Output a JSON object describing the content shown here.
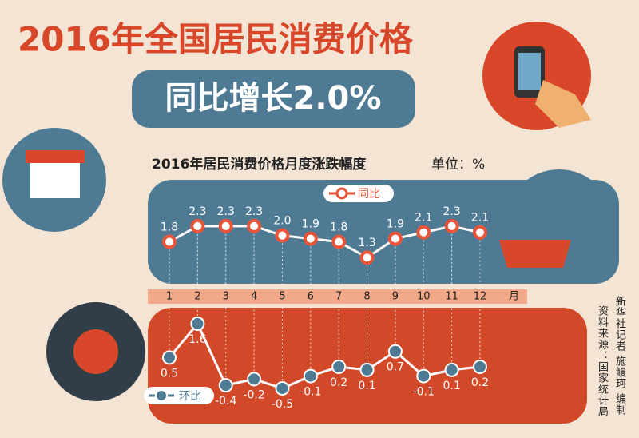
{
  "title": "2016年全国居民消费价格",
  "subtitle": "同比增长2.0%",
  "chart_data": [
    {
      "type": "line",
      "title": "2016年居民消费价格月度涨跌幅度",
      "unit": "单位：%",
      "categories": [
        "1",
        "2",
        "3",
        "4",
        "5",
        "6",
        "7",
        "8",
        "9",
        "10",
        "11",
        "12"
      ],
      "x_unit": "月",
      "ylim": [
        1,
        2.5
      ],
      "series": [
        {
          "name": "同比",
          "color": "#e8553a",
          "values": [
            1.8,
            2.3,
            2.3,
            2.3,
            2.0,
            1.9,
            1.8,
            1.3,
            1.9,
            2.1,
            2.3,
            2.1
          ],
          "value_labels": [
            "1.8",
            "2.3",
            "2.3",
            "2.3",
            "2.0",
            "1.9",
            "1.8",
            "1.3",
            "1.9",
            "2.1",
            "2.3",
            "2.1"
          ]
        }
      ]
    },
    {
      "type": "line",
      "ylim": [
        -0.5,
        1.6
      ],
      "series": [
        {
          "name": "环比",
          "color": "#4f7a94",
          "values": [
            0.5,
            1.6,
            -0.4,
            -0.2,
            -0.5,
            -0.1,
            0.2,
            0.1,
            0.7,
            -0.1,
            0.1,
            0.2
          ]
        }
      ]
    }
  ],
  "source": "资料来源：国家统计局",
  "credit": "新华社记者 施鳗珂 编制"
}
